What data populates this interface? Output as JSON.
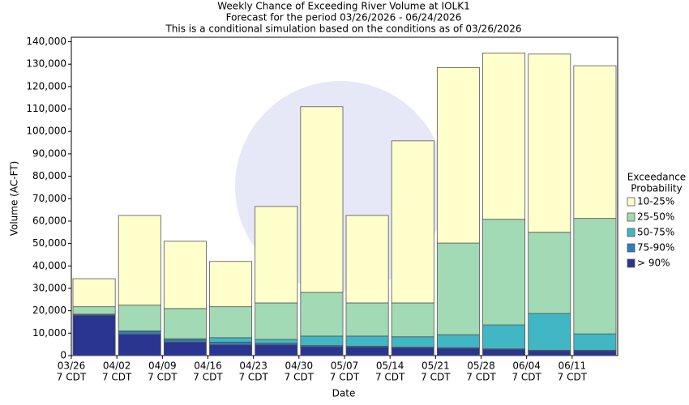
{
  "chart_data": {
    "type": "stacked_bar",
    "title": "Weekly Chance of Exceeding River Volume at IOLK1",
    "subtitle": "Forecast for the period 03/26/2026 - 06/24/2026",
    "note": "This is a conditional simulation based on the conditions as of 03/26/2026",
    "x_label": "Date",
    "y_label": "Volume (AC-FT)",
    "categories": [
      "03/26",
      "04/02",
      "04/09",
      "04/16",
      "04/23",
      "04/30",
      "05/07",
      "05/14",
      "05/21",
      "05/28",
      "06/04",
      "06/11"
    ],
    "time_label": "7 CDT",
    "legend_title": [
      "Exceedance",
      "Probability"
    ],
    "legend": "right",
    "series": [
      {
        "name": "> 90%",
        "color": "#2a3591",
        "values": [
          18000,
          9500,
          6000,
          4800,
          4800,
          4000,
          3800,
          3500,
          3200,
          2800,
          2200,
          2200
        ]
      },
      {
        "name": "75-90%",
        "color": "#2c7fb8",
        "values": [
          500,
          1300,
          1000,
          1200,
          700,
          500,
          400,
          300,
          300,
          200,
          200,
          200
        ]
      },
      {
        "name": "50-75%",
        "color": "#41b6c4",
        "values": [
          0,
          200,
          500,
          2000,
          1700,
          4200,
          4500,
          4600,
          5800,
          10700,
          16400,
          7300
        ]
      },
      {
        "name": "25-50%",
        "color": "#a1dab4",
        "values": [
          3300,
          11500,
          13500,
          13800,
          16300,
          19500,
          14800,
          15100,
          40900,
          47100,
          36200,
          51500
        ]
      },
      {
        "name": "10-25%",
        "color": "#ffffcc",
        "values": [
          12500,
          40000,
          30000,
          20200,
          43000,
          82800,
          39000,
          72300,
          78300,
          74200,
          79500,
          68100
        ]
      }
    ],
    "ylim": [
      0,
      142000
    ],
    "yticks": [
      0,
      {
        "value": 10000,
        "label": "10,000"
      },
      {
        "value": 20000,
        "label": "20,000"
      },
      {
        "value": 30000,
        "label": "30,000"
      },
      {
        "value": 40000,
        "label": "40,000"
      },
      {
        "value": 50000,
        "label": "50,000"
      },
      {
        "value": 60000,
        "label": "60,000"
      },
      {
        "value": 70000,
        "label": "70,000"
      },
      {
        "value": 80000,
        "label": "80,000"
      },
      {
        "value": 90000,
        "label": "90,000"
      },
      {
        "value": 100000,
        "label": "100,000"
      },
      {
        "value": 110000,
        "label": "110,000"
      },
      {
        "value": 120000,
        "label": "120,000"
      },
      {
        "value": 130000,
        "label": "130,000"
      },
      {
        "value": 140000,
        "label": "140,000"
      }
    ]
  }
}
